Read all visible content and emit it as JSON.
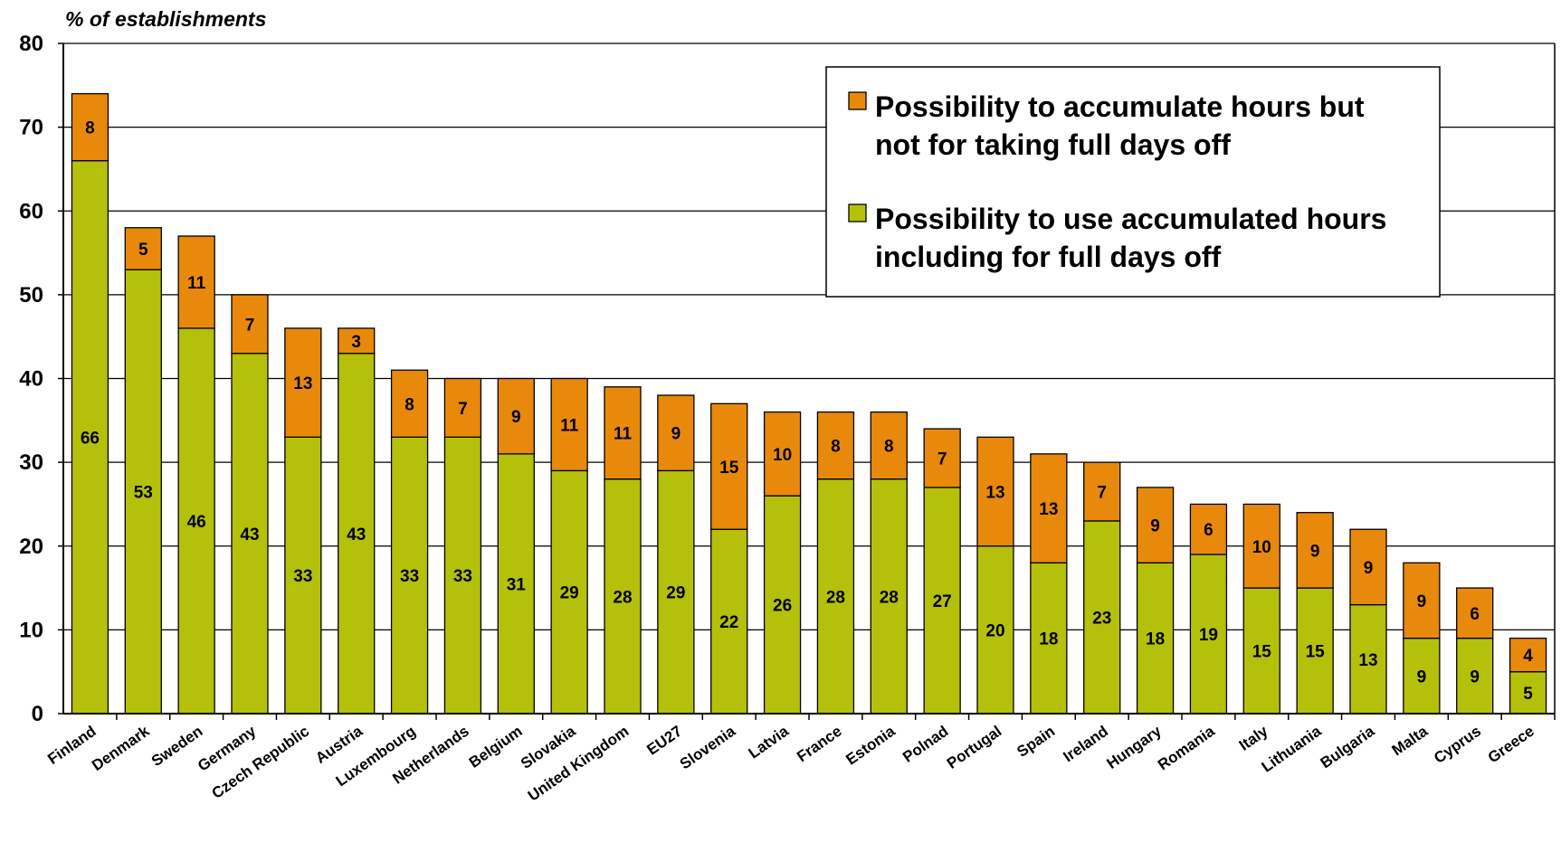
{
  "chart_data": {
    "type": "bar",
    "stacked": true,
    "ylabel": "% of establishments",
    "xlabel": "",
    "ylim": [
      0,
      80
    ],
    "yticks": [
      "0",
      "10",
      "20",
      "30",
      "40",
      "50",
      "60",
      "70",
      "80"
    ],
    "grid": true,
    "legend_position": "top-right",
    "categories": [
      "Finland",
      "Denmark",
      "Sweden",
      "Germany",
      "Czech Republic",
      "Austria",
      "Luxembourg",
      "Netherlands",
      "Belgium",
      "Slovakia",
      "United Kingdom",
      "EU27",
      "Slovenia",
      "Latvia",
      "France",
      "Estonia",
      "Polnad",
      "Portugal",
      "Spain",
      "Ireland",
      "Hungary",
      "Romania",
      "Italy",
      "Lithuania",
      "Bulgaria",
      "Malta",
      "Cyprus",
      "Greece"
    ],
    "series": [
      {
        "name": "Possibility to use accumulated hours including for full days off",
        "color": "#b5c00a",
        "values": [
          66,
          53,
          46,
          43,
          33,
          43,
          33,
          33,
          31,
          29,
          28,
          29,
          22,
          26,
          28,
          28,
          27,
          20,
          18,
          23,
          18,
          19,
          15,
          15,
          13,
          9,
          9,
          5
        ]
      },
      {
        "name": "Possibility to accumulate hours but not for taking full days off",
        "color": "#e8890c",
        "values": [
          8,
          5,
          11,
          7,
          13,
          3,
          8,
          7,
          9,
          11,
          11,
          9,
          15,
          10,
          8,
          8,
          7,
          13,
          13,
          7,
          9,
          6,
          10,
          9,
          9,
          9,
          6,
          4
        ]
      }
    ],
    "legend": [
      {
        "lines": [
          "Possibility to accumulate hours but",
          "not for taking full days off"
        ],
        "color": "#e8890c"
      },
      {
        "lines": [
          "Possibility to use accumulated hours",
          "including for full days off"
        ],
        "color": "#b5c00a"
      }
    ]
  }
}
